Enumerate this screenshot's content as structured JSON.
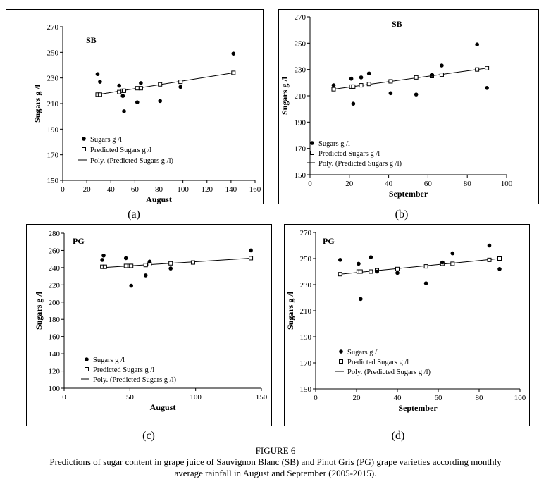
{
  "figure": {
    "label": "FIGURE 6",
    "caption_line1": "Predictions of sugar content in grape juice of Sauvignon Blanc (SB) and Pinot Gris (PG) grape varieties according monthly",
    "caption_line2": "average rainfall in August and September (2005-2015)."
  },
  "chart_data": [
    {
      "panel_label": "(a)",
      "type": "scatter",
      "title": "SB",
      "xlabel": "August",
      "ylabel": "Sugars g /l",
      "xlim": [
        0,
        160
      ],
      "ylim": [
        150,
        270
      ],
      "xticks": [
        0,
        20,
        40,
        60,
        80,
        100,
        120,
        140,
        160
      ],
      "yticks": [
        150,
        170,
        190,
        210,
        230,
        250,
        270
      ],
      "legend": [
        "Sugars g /l",
        "Predicted Sugars g /l",
        "Poly. (Predicted Sugars g /l)"
      ],
      "series": [
        {
          "name": "Sugars g /l",
          "x": [
            29,
            31,
            47,
            50,
            51,
            62,
            65,
            81,
            98,
            142
          ],
          "y": [
            233,
            227,
            224,
            216,
            204,
            211,
            226,
            212,
            223,
            249
          ]
        },
        {
          "name": "Predicted Sugars g /l",
          "x": [
            29,
            31,
            47,
            50,
            51,
            62,
            65,
            81,
            98,
            142
          ],
          "y": [
            217,
            217,
            219,
            220,
            220,
            222,
            222,
            225,
            227,
            234
          ]
        },
        {
          "name": "Poly. (Predicted Sugars g /l)",
          "x": [
            29,
            142
          ],
          "y": [
            217,
            234
          ]
        }
      ]
    },
    {
      "panel_label": "(b)",
      "type": "scatter",
      "title": "SB",
      "xlabel": "September",
      "ylabel": "Sugars g /l",
      "xlim": [
        0,
        100
      ],
      "ylim": [
        150,
        270
      ],
      "xticks": [
        0,
        20,
        40,
        60,
        80,
        100
      ],
      "yticks": [
        150,
        170,
        190,
        210,
        230,
        250,
        270
      ],
      "legend": [
        "Sugars g /l",
        "Predicted Sugars g /l",
        "Poly. (Predicted Sugars g /l)"
      ],
      "series": [
        {
          "name": "Sugars g /l",
          "x": [
            12,
            21,
            22,
            26,
            30,
            41,
            54,
            62,
            67,
            85,
            90
          ],
          "y": [
            218,
            223,
            204,
            224,
            227,
            212,
            211,
            226,
            233,
            249,
            216
          ]
        },
        {
          "name": "Predicted Sugars g /l",
          "x": [
            12,
            21,
            22,
            26,
            30,
            41,
            54,
            62,
            67,
            85,
            90
          ],
          "y": [
            215,
            217,
            217,
            218,
            219,
            221,
            224,
            225,
            226,
            230,
            231
          ]
        },
        {
          "name": "Poly. (Predicted Sugars g /l)",
          "x": [
            12,
            90
          ],
          "y": [
            215,
            231
          ]
        }
      ]
    },
    {
      "panel_label": "(c)",
      "type": "scatter",
      "title": "PG",
      "xlabel": "August",
      "ylabel": "Sugars g /l",
      "xlim": [
        0,
        150
      ],
      "ylim": [
        100,
        280
      ],
      "xticks": [
        0,
        50,
        100,
        150
      ],
      "yticks": [
        100,
        120,
        140,
        160,
        180,
        200,
        220,
        240,
        260,
        280
      ],
      "legend": [
        "Sugars g /l",
        "Predicted Sugars g /l",
        "Poly. (Predicted Sugars g /l)"
      ],
      "series": [
        {
          "name": "Sugars g /l",
          "x": [
            29,
            30,
            47,
            51,
            62,
            65,
            81,
            142
          ],
          "y": [
            249,
            254,
            251,
            219,
            231,
            247,
            239,
            260
          ]
        },
        {
          "name": "Predicted Sugars g /l",
          "x": [
            29,
            31,
            47,
            50,
            51,
            62,
            65,
            81,
            98,
            142
          ],
          "y": [
            241,
            241,
            242,
            242,
            242,
            243,
            244,
            245,
            246,
            251
          ]
        },
        {
          "name": "Poly. (Predicted Sugars g /l)",
          "x": [
            29,
            142
          ],
          "y": [
            240,
            251
          ]
        }
      ]
    },
    {
      "panel_label": "(d)",
      "type": "scatter",
      "title": "PG",
      "xlabel": "September",
      "ylabel": "Sugars g /l",
      "xlim": [
        0,
        100
      ],
      "ylim": [
        150,
        270
      ],
      "xticks": [
        0,
        20,
        40,
        60,
        80,
        100
      ],
      "yticks": [
        150,
        170,
        190,
        210,
        230,
        250,
        270
      ],
      "legend": [
        "Sugars g /l",
        "Predicted Sugars g /l",
        "Poly. (Predicted Sugars g /l)"
      ],
      "series": [
        {
          "name": "Sugars g /l",
          "x": [
            12,
            21,
            22,
            27,
            30,
            40,
            54,
            62,
            67,
            85,
            90
          ],
          "y": [
            249,
            246,
            219,
            251,
            240,
            239,
            231,
            247,
            254,
            260,
            242
          ]
        },
        {
          "name": "Predicted Sugars g /l",
          "x": [
            12,
            21,
            22,
            27,
            30,
            40,
            54,
            62,
            67,
            85,
            90
          ],
          "y": [
            238,
            240,
            240,
            240,
            241,
            242,
            244,
            246,
            246,
            249,
            250
          ]
        },
        {
          "name": "Poly. (Predicted Sugars g /l)",
          "x": [
            12,
            90
          ],
          "y": [
            238,
            250
          ]
        }
      ]
    }
  ]
}
